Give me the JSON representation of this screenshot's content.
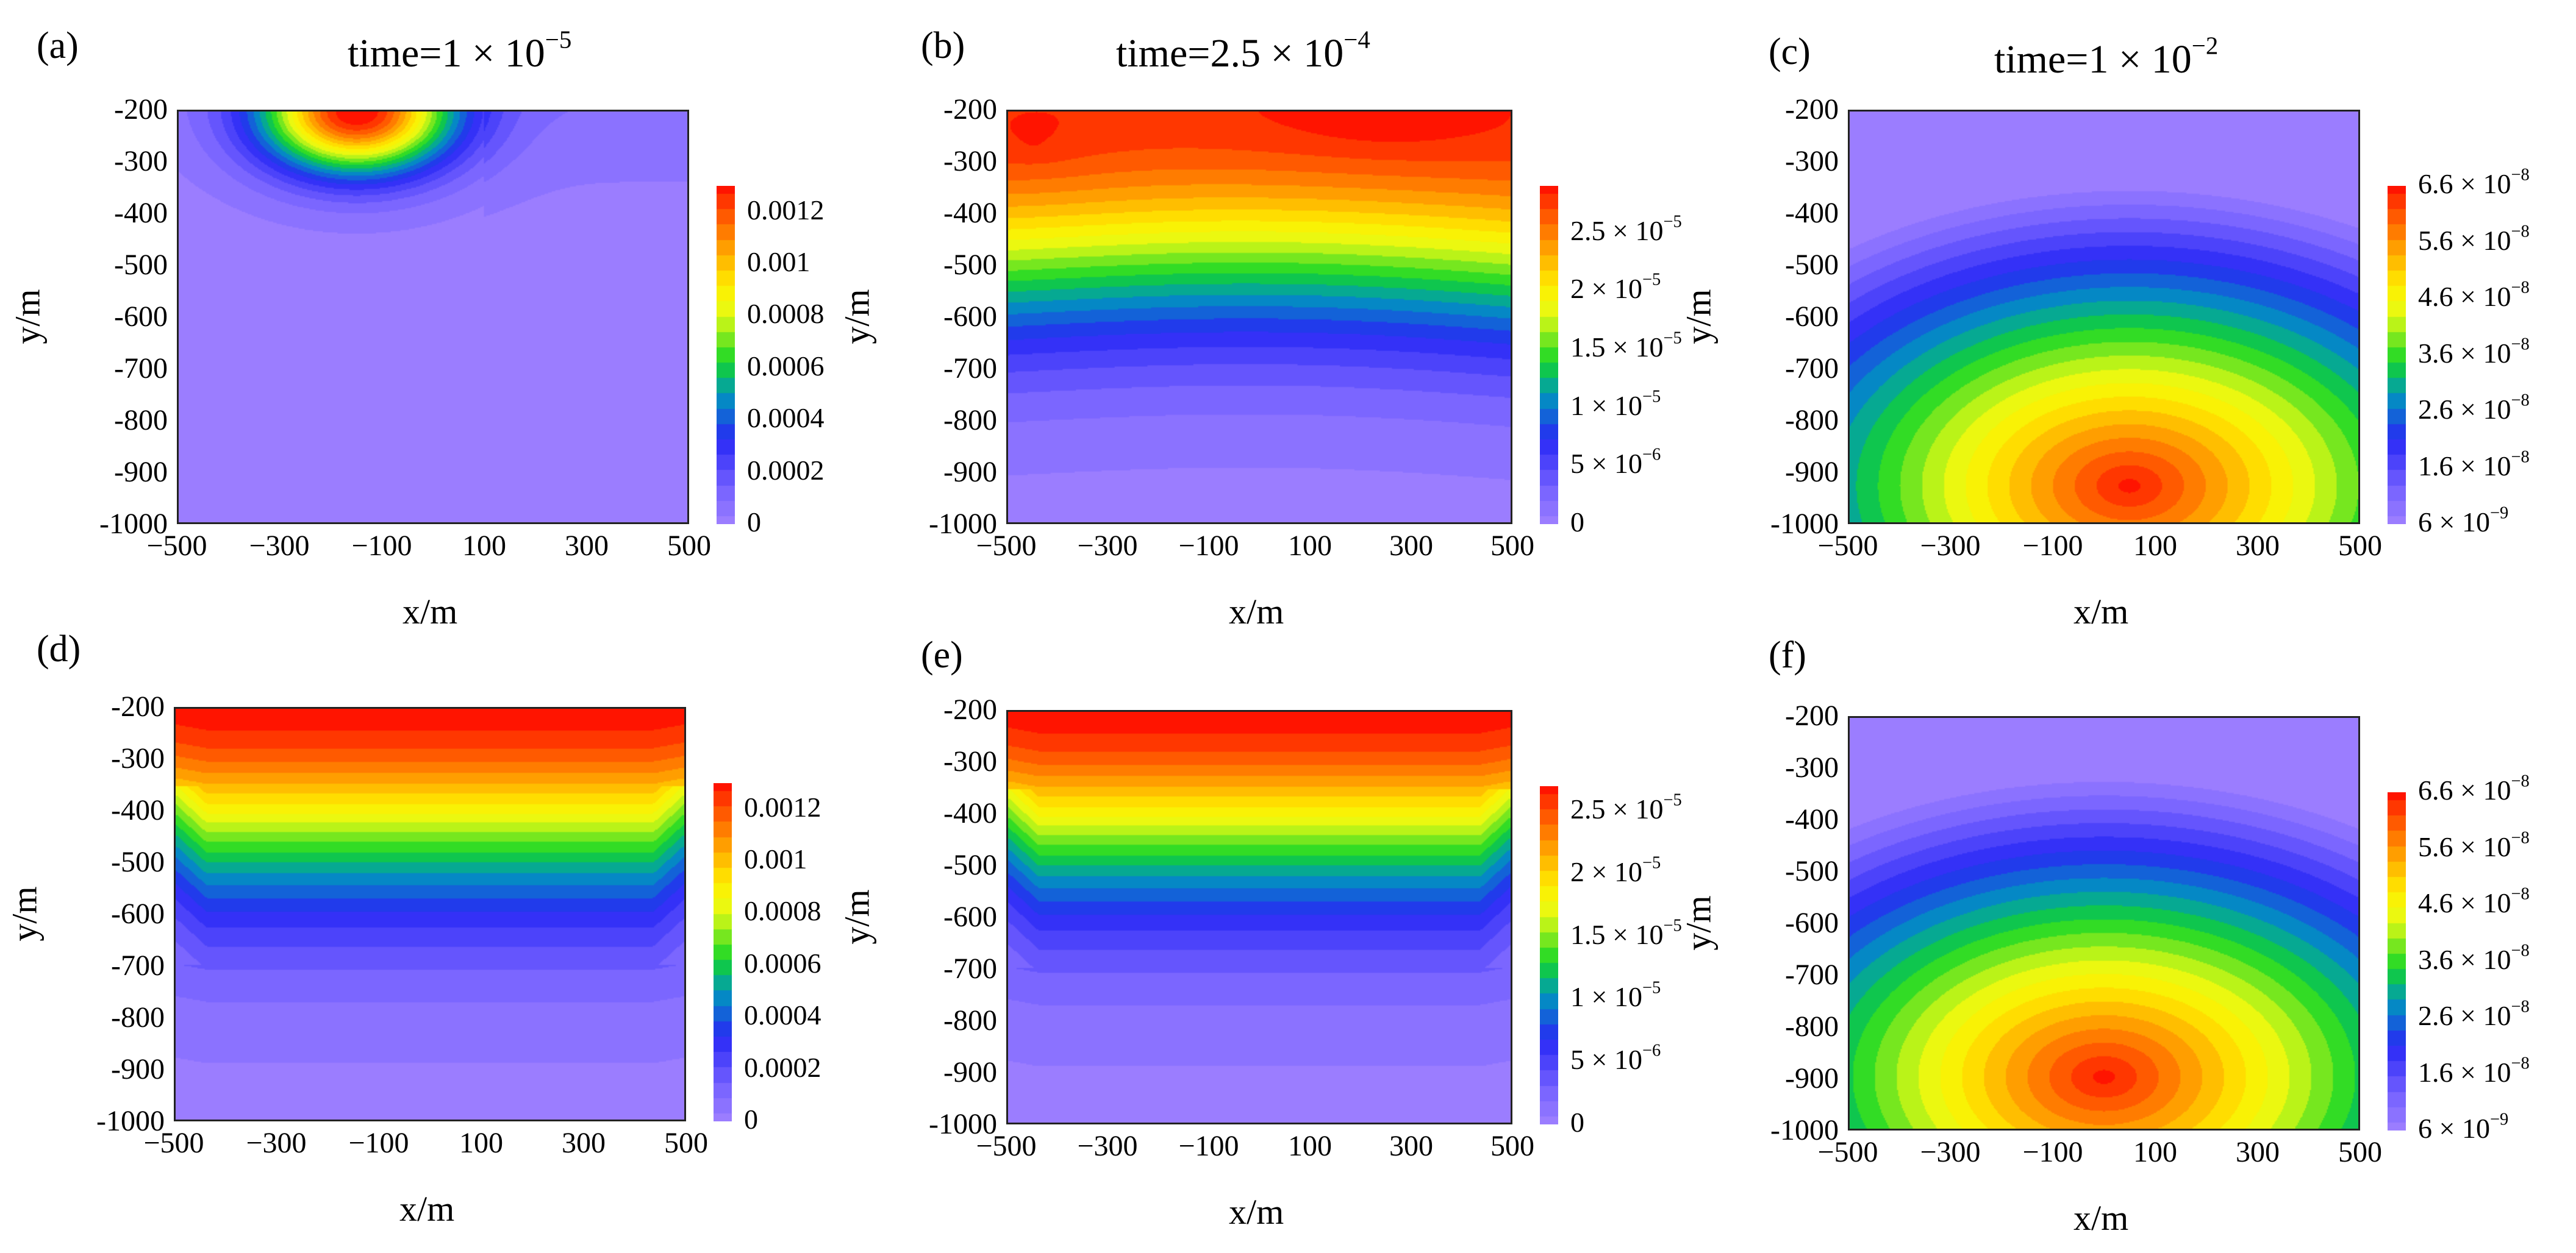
{
  "chart_data": [
    {
      "type": "heatmap",
      "panel_label": "(a)",
      "title": "time=1 × 10⁻⁵",
      "title_base": "time=1 × 10",
      "title_exp": "−5",
      "xlabel": "x/m",
      "ylabel": "y/m",
      "xlim": [
        -500,
        500
      ],
      "ylim": [
        -1000,
        -200
      ],
      "xticks": [
        "−500",
        "−300",
        "−100",
        "100",
        "300",
        "500"
      ],
      "yticks": [
        "-200",
        "-300",
        "-400",
        "-500",
        "-600",
        "-700",
        "-800",
        "-900",
        "-1000"
      ],
      "colorbar_ticks": [
        {
          "value": 0.0012,
          "label": "0.0012"
        },
        {
          "value": 0.001,
          "label": "0.001"
        },
        {
          "value": 0.0008,
          "label": "0.0008"
        },
        {
          "value": 0.0006,
          "label": "0.0006"
        },
        {
          "value": 0.0004,
          "label": "0.0004"
        },
        {
          "value": 0.0002,
          "label": "0.0002"
        },
        {
          "value": 0,
          "label": "0"
        }
      ],
      "colorbar_range": [
        0,
        0.0013
      ],
      "field": "hotspot_top",
      "hotspot_x": -150
    },
    {
      "type": "heatmap",
      "panel_label": "(b)",
      "title": "time=2.5 × 10⁻⁴",
      "title_base": "time=2.5 × 10",
      "title_exp": "−4",
      "xlabel": "x/m",
      "ylabel": "y/m",
      "xlim": [
        -500,
        500
      ],
      "ylim": [
        -1000,
        -200
      ],
      "xticks": [
        "−500",
        "−300",
        "−100",
        "100",
        "300",
        "500"
      ],
      "yticks": [
        "-200",
        "-300",
        "-400",
        "-500",
        "-600",
        "-700",
        "-800",
        "-900",
        "-1000"
      ],
      "colorbar_ticks": [
        {
          "value": 2.5e-05,
          "label": "2.5 × 10",
          "exp": "−5"
        },
        {
          "value": 2e-05,
          "label": "2 × 10",
          "exp": "−5"
        },
        {
          "value": 1.5e-05,
          "label": "1.5 × 10",
          "exp": "−5"
        },
        {
          "value": 1e-05,
          "label": "1 × 10",
          "exp": "−5"
        },
        {
          "value": 5e-06,
          "label": "5 × 10",
          "exp": "−6"
        },
        {
          "value": 0,
          "label": "0"
        }
      ],
      "colorbar_range": [
        0,
        2.9e-05
      ],
      "field": "top_band_wavy"
    },
    {
      "type": "heatmap",
      "panel_label": "(c)",
      "title": "time=1 × 10⁻²",
      "title_base": "time=1 × 10",
      "title_exp": "−2",
      "xlabel": "x/m",
      "ylabel": "y/m",
      "xlim": [
        -500,
        500
      ],
      "ylim": [
        -1000,
        -200
      ],
      "xticks": [
        "−500",
        "−300",
        "−100",
        "100",
        "300",
        "500"
      ],
      "yticks": [
        "-200",
        "-300",
        "-400",
        "-500",
        "-600",
        "-700",
        "-800",
        "-900",
        "-1000"
      ],
      "colorbar_ticks": [
        {
          "value": 6.6e-08,
          "label": "6.6 × 10",
          "exp": "−8"
        },
        {
          "value": 5.6e-08,
          "label": "5.6 × 10",
          "exp": "−8"
        },
        {
          "value": 4.6e-08,
          "label": "4.6 × 10",
          "exp": "−8"
        },
        {
          "value": 3.6e-08,
          "label": "3.6 × 10",
          "exp": "−8"
        },
        {
          "value": 2.6e-08,
          "label": "2.6 × 10",
          "exp": "−8"
        },
        {
          "value": 1.6e-08,
          "label": "1.6 × 10",
          "exp": "−8"
        },
        {
          "value": 6e-09,
          "label": "6 × 10",
          "exp": "−9"
        }
      ],
      "colorbar_range": [
        6e-09,
        6.6e-08
      ],
      "field": "deep_peak",
      "peak_x": 50,
      "peak_y": -930
    },
    {
      "type": "heatmap",
      "panel_label": "(d)",
      "title": "",
      "xlabel": "x/m",
      "ylabel": "y/m",
      "xlim": [
        -500,
        500
      ],
      "ylim": [
        -1000,
        -200
      ],
      "xticks": [
        "−500",
        "−300",
        "−100",
        "100",
        "300",
        "500"
      ],
      "yticks": [
        "-200",
        "-300",
        "-400",
        "-500",
        "-600",
        "-700",
        "-800",
        "-900",
        "-1000"
      ],
      "colorbar_ticks": [
        {
          "value": 0.0012,
          "label": "0.0012"
        },
        {
          "value": 0.001,
          "label": "0.001"
        },
        {
          "value": 0.0008,
          "label": "0.0008"
        },
        {
          "value": 0.0006,
          "label": "0.0006"
        },
        {
          "value": 0.0004,
          "label": "0.0004"
        },
        {
          "value": 0.0002,
          "label": "0.0002"
        },
        {
          "value": 0,
          "label": "0"
        }
      ],
      "colorbar_range": [
        0,
        0.0013
      ],
      "field": "layered_top"
    },
    {
      "type": "heatmap",
      "panel_label": "(e)",
      "title": "",
      "xlabel": "x/m",
      "ylabel": "y/m",
      "xlim": [
        -500,
        500
      ],
      "ylim": [
        -1000,
        -200
      ],
      "xticks": [
        "−500",
        "−300",
        "−100",
        "100",
        "300",
        "500"
      ],
      "yticks": [
        "-200",
        "-300",
        "-400",
        "-500",
        "-600",
        "-700",
        "-800",
        "-900",
        "-1000"
      ],
      "colorbar_ticks": [
        {
          "value": 2.5e-05,
          "label": "2.5 × 10",
          "exp": "−5"
        },
        {
          "value": 2e-05,
          "label": "2 × 10",
          "exp": "−5"
        },
        {
          "value": 1.5e-05,
          "label": "1.5 × 10",
          "exp": "−5"
        },
        {
          "value": 1e-05,
          "label": "1 × 10",
          "exp": "−5"
        },
        {
          "value": 5e-06,
          "label": "5 × 10",
          "exp": "−6"
        },
        {
          "value": 0,
          "label": "0"
        }
      ],
      "colorbar_range": [
        0,
        2.7e-05
      ],
      "field": "layered_top_b"
    },
    {
      "type": "heatmap",
      "panel_label": "(f)",
      "title": "",
      "xlabel": "x/m",
      "ylabel": "y/m",
      "xlim": [
        -500,
        500
      ],
      "ylim": [
        -1000,
        -200
      ],
      "xticks": [
        "−500",
        "−300",
        "−100",
        "100",
        "300",
        "500"
      ],
      "yticks": [
        "-200",
        "-300",
        "-400",
        "-500",
        "-600",
        "-700",
        "-800",
        "-900",
        "-1000"
      ],
      "colorbar_ticks": [
        {
          "value": 6.6e-08,
          "label": "6.6 × 10",
          "exp": "−8"
        },
        {
          "value": 5.6e-08,
          "label": "5.6 × 10",
          "exp": "−8"
        },
        {
          "value": 4.6e-08,
          "label": "4.6 × 10",
          "exp": "−8"
        },
        {
          "value": 3.6e-08,
          "label": "3.6 × 10",
          "exp": "−8"
        },
        {
          "value": 2.6e-08,
          "label": "2.6 × 10",
          "exp": "−8"
        },
        {
          "value": 1.6e-08,
          "label": "1.6 × 10",
          "exp": "−8"
        },
        {
          "value": 6e-09,
          "label": "6 × 10",
          "exp": "−9"
        }
      ],
      "colorbar_range": [
        6e-09,
        6.6e-08
      ],
      "field": "deep_peak",
      "peak_x": 0,
      "peak_y": -900
    }
  ]
}
